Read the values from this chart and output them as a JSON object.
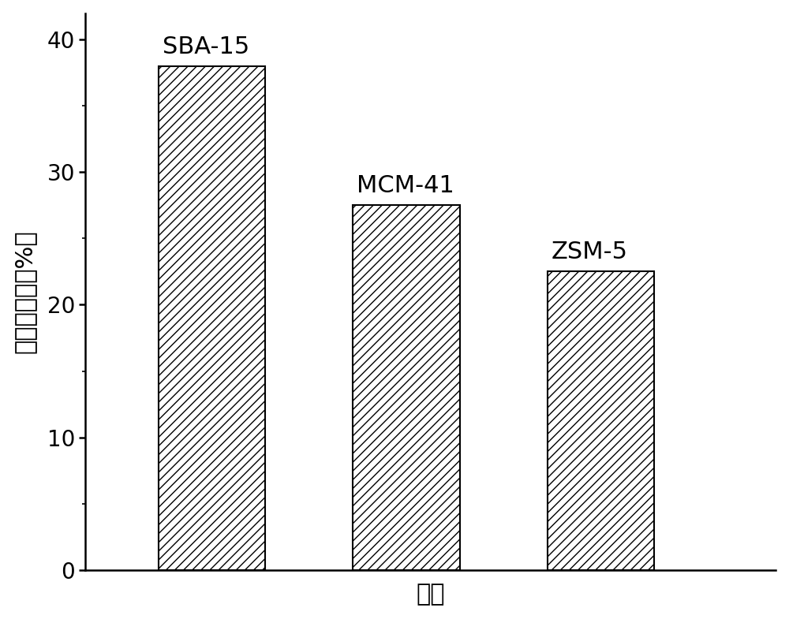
{
  "categories": [
    "SBA-15",
    "MCM-41",
    "ZSM-5"
  ],
  "values": [
    38.0,
    27.5,
    22.5
  ],
  "bar_color": "#ffffff",
  "bar_edgecolor": "#000000",
  "hatch": "///",
  "xlabel": "载体",
  "ylabel": "马来酸产率（%）",
  "ylim": [
    0,
    42
  ],
  "yticks": [
    0,
    10,
    20,
    30,
    40
  ],
  "bar_width": 0.55,
  "label_fontsize": 22,
  "tick_fontsize": 20,
  "annotation_fontsize": 22,
  "bar_positions": [
    1,
    2,
    3
  ],
  "xlim": [
    0.35,
    3.9
  ],
  "background_color": "#ffffff"
}
